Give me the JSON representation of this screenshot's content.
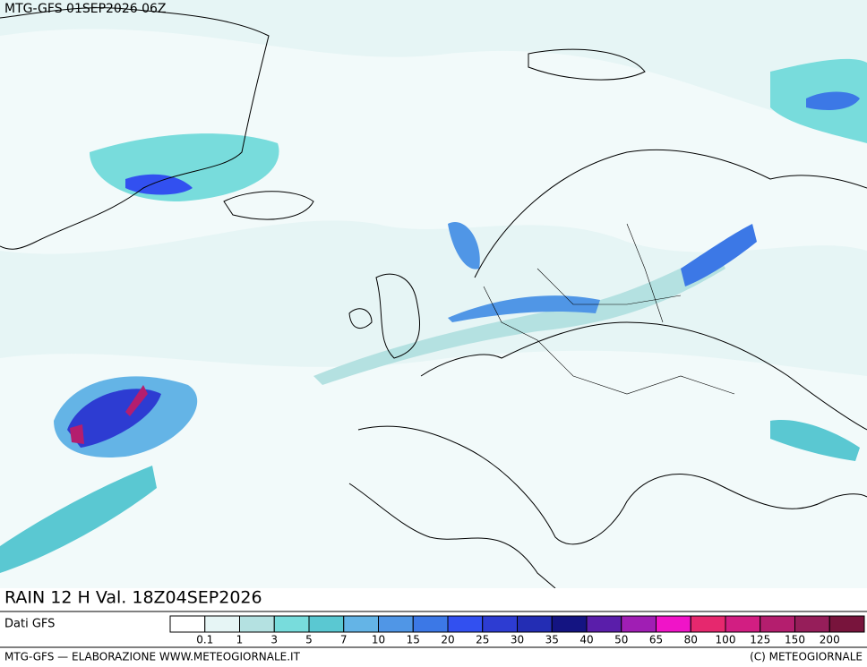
{
  "header": {
    "title": "MTG-GFS 01SEP2026 06Z"
  },
  "caption": "RAIN 12 H Val. 18Z04SEP2026",
  "legend": {
    "source": "Dati GFS",
    "colors": [
      "#ffffff",
      "#e6f5f5",
      "#b4e1e1",
      "#78dcdc",
      "#5ac8d2",
      "#64b4e6",
      "#5096e6",
      "#3c78e6",
      "#3250f0",
      "#2d3cd2",
      "#232db4",
      "#141482",
      "#5a1eaa",
      "#a01eb4",
      "#f014c8",
      "#e6286e",
      "#d21e82",
      "#b41e6e",
      "#961e5a",
      "#78143c"
    ],
    "labels": [
      0.1,
      1,
      3,
      5,
      7,
      10,
      15,
      20,
      25,
      30,
      35,
      40,
      50,
      65,
      80,
      100,
      125,
      150,
      200
    ]
  },
  "footer": {
    "left": "MTG-GFS — ELABORAZIONE WWW.METEOGIORNALE.IT",
    "right": "(C) METEOGIORNALE"
  }
}
